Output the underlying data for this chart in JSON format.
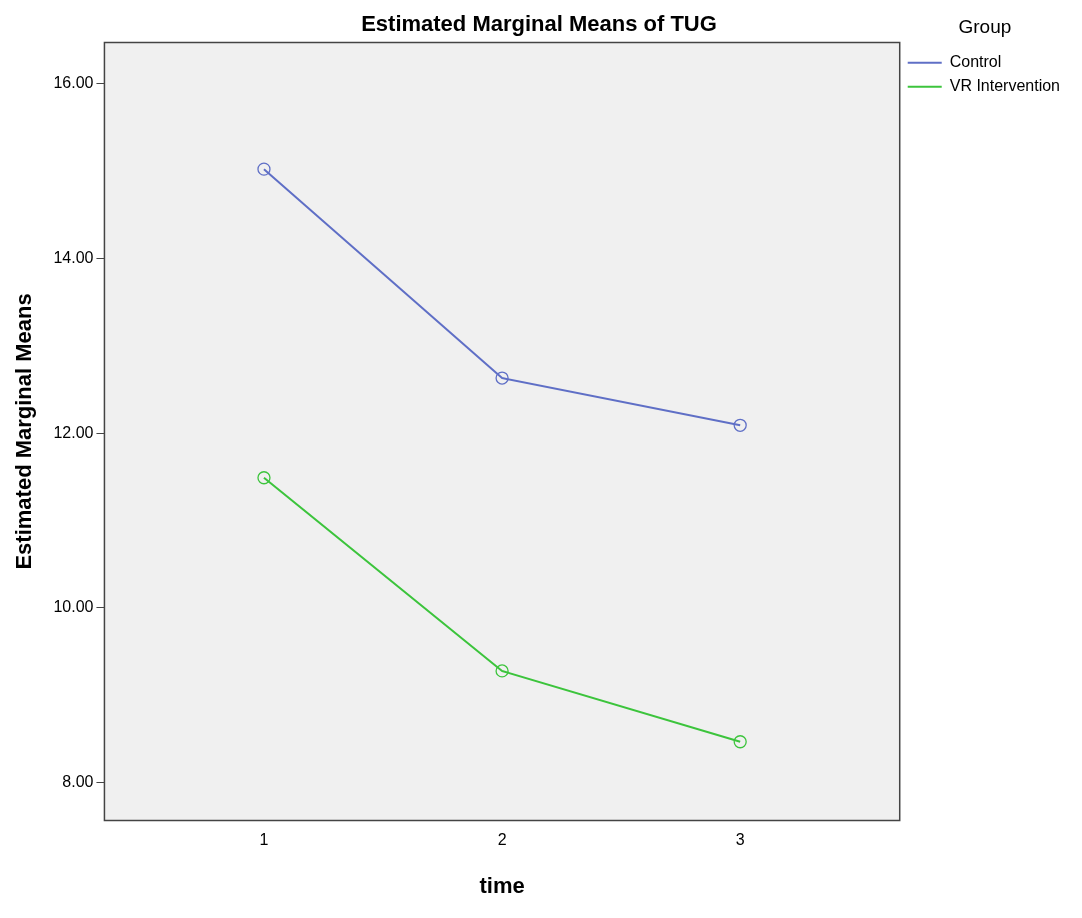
{
  "chart_data": {
    "type": "line",
    "title": "Estimated Marginal Means of TUG",
    "xlabel": "time",
    "ylabel": "Estimated Marginal Means",
    "legend_title": "Group",
    "x": [
      1,
      2,
      3
    ],
    "series": [
      {
        "name": "Control",
        "color": "#5f6fc6",
        "values": [
          15.02,
          12.63,
          12.09
        ]
      },
      {
        "name": "VR Intervention",
        "color": "#3cc43c",
        "values": [
          11.49,
          9.28,
          8.47
        ]
      }
    ],
    "xlim": [
      0.33,
      3.67
    ],
    "xticks": [
      1,
      2,
      3
    ],
    "ylim": [
      7.57,
      16.47
    ],
    "yticks": [
      {
        "value": 8,
        "label": "8.00"
      },
      {
        "value": 10,
        "label": "10.00"
      },
      {
        "value": 12,
        "label": "12.00"
      },
      {
        "value": 14,
        "label": "14.00"
      },
      {
        "value": 16,
        "label": "16.00"
      }
    ],
    "grid": false,
    "legend": "top right",
    "marker": "circle",
    "line_style": "solid"
  }
}
